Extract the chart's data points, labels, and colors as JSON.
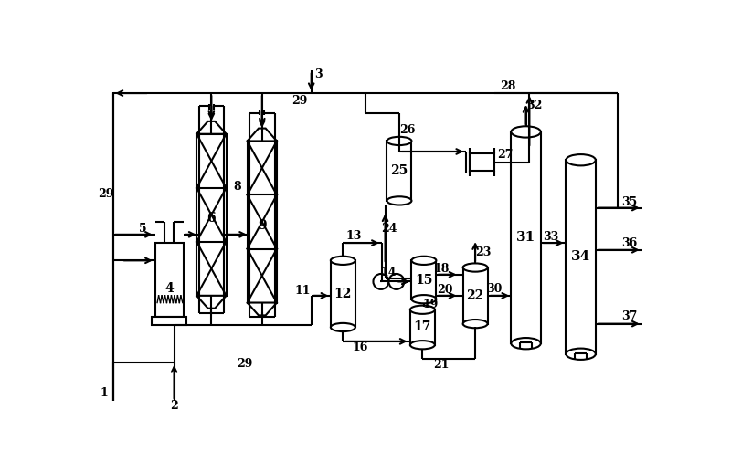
{
  "bg_color": "#ffffff",
  "line_color": "#000000",
  "figsize": [
    8.0,
    5.17
  ],
  "dpi": 100
}
